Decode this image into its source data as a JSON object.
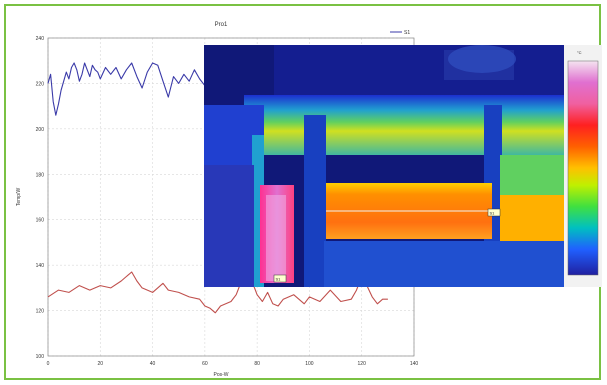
{
  "chart_data": {
    "type": "line",
    "title": "Pro1",
    "xlabel": "Pos-W",
    "ylabel": "Temp/W",
    "xlim": [
      0,
      140
    ],
    "ylim": [
      100,
      240
    ],
    "x_ticks": [
      "0",
      "20",
      "40",
      "60",
      "80",
      "100",
      "120",
      "140"
    ],
    "y_ticks": [
      "240",
      "220",
      "200",
      "180",
      "160",
      "140",
      "120",
      "100"
    ],
    "legend": {
      "placement": "top-right",
      "label": "S1"
    },
    "grid": true,
    "series": [
      {
        "color": "#3a3aa8",
        "x": [
          0,
          1,
          2,
          3,
          4,
          5,
          6,
          7,
          8,
          9,
          10,
          11,
          12,
          13,
          14,
          15,
          16,
          17,
          18,
          19,
          20,
          22,
          24,
          26,
          28,
          30,
          32,
          34,
          36,
          38,
          40,
          42,
          44,
          46,
          48,
          50,
          52,
          54,
          56,
          58,
          60,
          62
        ],
        "values": [
          220,
          224,
          212,
          206,
          211,
          217,
          221,
          225,
          222,
          227,
          229,
          226,
          221,
          224,
          229,
          226,
          223,
          228,
          226,
          225,
          222,
          227,
          224,
          227,
          222,
          226,
          229,
          223,
          218,
          225,
          229,
          228,
          221,
          214,
          223,
          220,
          224,
          221,
          226,
          222,
          219,
          232
        ]
      },
      {
        "color": "#c0504d",
        "x": [
          0,
          4,
          8,
          12,
          16,
          20,
          24,
          28,
          30,
          32,
          34,
          36,
          40,
          44,
          46,
          50,
          54,
          58,
          60,
          62,
          64,
          66,
          70,
          72,
          74,
          76,
          78,
          80,
          82,
          84,
          86,
          88,
          90,
          94,
          98,
          100,
          104,
          108,
          112,
          116,
          118,
          120,
          122,
          124,
          126,
          128,
          130
        ],
        "values": [
          126,
          129,
          128,
          131,
          129,
          131,
          130,
          133,
          135,
          137,
          133,
          130,
          128,
          132,
          129,
          128,
          126,
          125,
          122,
          121,
          119,
          122,
          124,
          127,
          133,
          137,
          133,
          127,
          124,
          128,
          123,
          122,
          125,
          127,
          123,
          126,
          124,
          129,
          124,
          125,
          129,
          135,
          131,
          126,
          123,
          125,
          125
        ]
      }
    ]
  },
  "thermal_image": {
    "scale_title": "°C",
    "scale_labels": [
      "",
      "",
      "",
      "",
      "",
      "",
      "",
      "",
      "",
      "",
      "",
      ""
    ],
    "markers": [
      "S1",
      "S1"
    ],
    "scale_colors": [
      "#f4e4f0",
      "#e070d0",
      "#f060a0",
      "#ff2020",
      "#ff6000",
      "#ffa000",
      "#ffe000",
      "#c0f000",
      "#40e040",
      "#00c0c0",
      "#2060ff",
      "#2020a0"
    ]
  }
}
